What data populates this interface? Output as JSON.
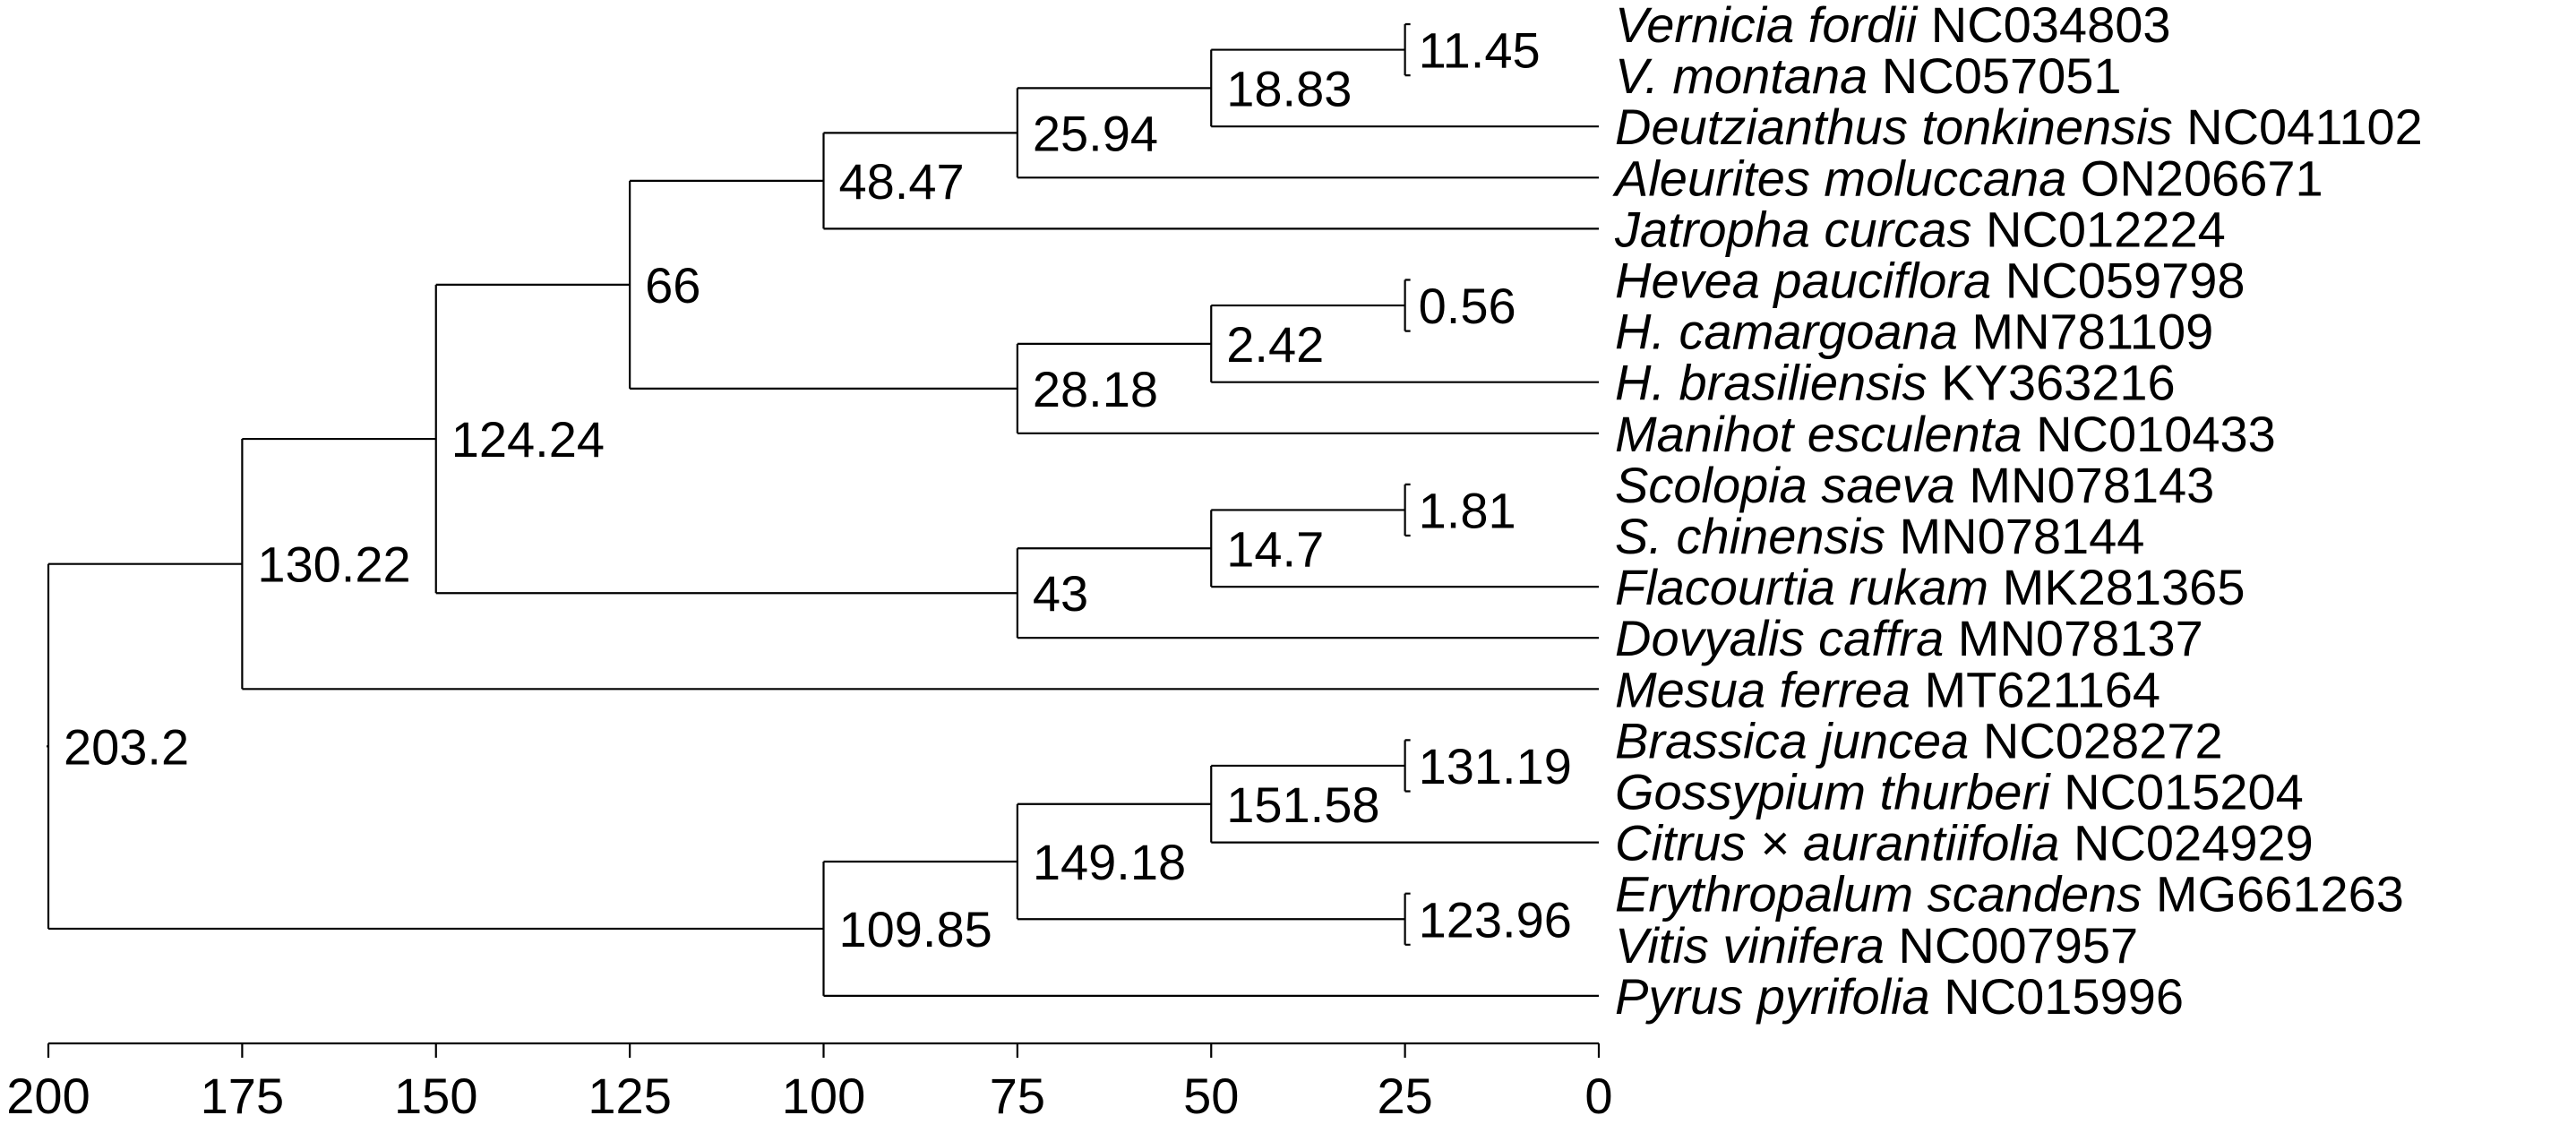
{
  "axis": {
    "ticks": [
      "200",
      "175",
      "150",
      "125",
      "100",
      "75",
      "50",
      "25",
      "0"
    ]
  },
  "taxa": [
    {
      "species": "Vernicia fordii",
      "accession": "NC034803"
    },
    {
      "species": "V. montana",
      "accession": "NC057051"
    },
    {
      "species": "Deutzianthus tonkinensis",
      "accession": "NC041102"
    },
    {
      "species": "Aleurites moluccana",
      "accession": "ON206671"
    },
    {
      "species": "Jatropha curcas",
      "accession": "NC012224"
    },
    {
      "species": "Hevea pauciflora",
      "accession": "NC059798"
    },
    {
      "species": "H. camargoana",
      "accession": "MN781109"
    },
    {
      "species": "H. brasiliensis",
      "accession": "KY363216"
    },
    {
      "species": "Manihot esculenta",
      "accession": "NC010433"
    },
    {
      "species": "Scolopia saeva",
      "accession": "MN078143"
    },
    {
      "species": "S. chinensis",
      "accession": "MN078144"
    },
    {
      "species": "Flacourtia rukam",
      "accession": "MK281365"
    },
    {
      "species": "Dovyalis caffra",
      "accession": "MN078137"
    },
    {
      "species": "Mesua ferrea",
      "accession": "MT621164"
    },
    {
      "species": "Brassica juncea",
      "accession": "NC028272"
    },
    {
      "species": "Gossypium thurberi",
      "accession": "NC015204"
    },
    {
      "species": "Citrus × aurantiifolia",
      "accession": "NC024929"
    },
    {
      "species": "Erythropalum scandens",
      "accession": "MG661263"
    },
    {
      "species": "Vitis vinifera",
      "accession": "NC007957"
    },
    {
      "species": "Pyrus pyrifolia",
      "accession": "NC015996"
    }
  ],
  "nodes": [
    {
      "id": "n_1145",
      "label": "11.45",
      "age": 25,
      "children": [
        0,
        1
      ],
      "boxed": true
    },
    {
      "id": "n_1883",
      "label": "18.83",
      "age": 50,
      "children": [
        "n_1145",
        2
      ]
    },
    {
      "id": "n_2594",
      "label": "25.94",
      "age": 75,
      "children": [
        "n_1883",
        3
      ]
    },
    {
      "id": "n_4847",
      "label": "48.47",
      "age": 100,
      "children": [
        "n_2594",
        4
      ]
    },
    {
      "id": "n_056",
      "label": "0.56",
      "age": 25,
      "children": [
        5,
        6
      ],
      "boxed": true
    },
    {
      "id": "n_242",
      "label": "2.42",
      "age": 50,
      "children": [
        "n_056",
        7
      ]
    },
    {
      "id": "n_2818",
      "label": "28.18",
      "age": 75,
      "children": [
        "n_242",
        8
      ]
    },
    {
      "id": "n_66",
      "label": "66",
      "age": 125,
      "children": [
        "n_4847",
        "n_2818"
      ]
    },
    {
      "id": "n_181",
      "label": "1.81",
      "age": 25,
      "children": [
        9,
        10
      ],
      "boxed": true
    },
    {
      "id": "n_147",
      "label": "14.7",
      "age": 50,
      "children": [
        "n_181",
        11
      ]
    },
    {
      "id": "n_43",
      "label": "43",
      "age": 75,
      "children": [
        "n_147",
        12
      ]
    },
    {
      "id": "n_12424",
      "label": "124.24",
      "age": 150,
      "children": [
        "n_66",
        "n_43"
      ]
    },
    {
      "id": "n_13022",
      "label": "130.22",
      "age": 175,
      "children": [
        "n_12424",
        13
      ]
    },
    {
      "id": "n_13119",
      "label": "131.19",
      "age": 25,
      "children": [
        14,
        15
      ],
      "boxed": true
    },
    {
      "id": "n_15158",
      "label": "151.58",
      "age": 50,
      "children": [
        "n_13119",
        16
      ]
    },
    {
      "id": "n_12396",
      "label": "123.96",
      "age": 25,
      "children": [
        17,
        18
      ],
      "boxed": true
    },
    {
      "id": "n_14918",
      "label": "149.18",
      "age": 75,
      "children": [
        "n_15158",
        "n_12396"
      ]
    },
    {
      "id": "n_10985",
      "label": "109.85",
      "age": 100,
      "children": [
        "n_14918",
        19
      ]
    },
    {
      "id": "n_2032",
      "label": "203.2",
      "age": 200,
      "children": [
        "n_13022",
        "n_10985"
      ]
    }
  ],
  "colors": {
    "line": "#000000",
    "text": "#000000",
    "background": "#ffffff"
  }
}
